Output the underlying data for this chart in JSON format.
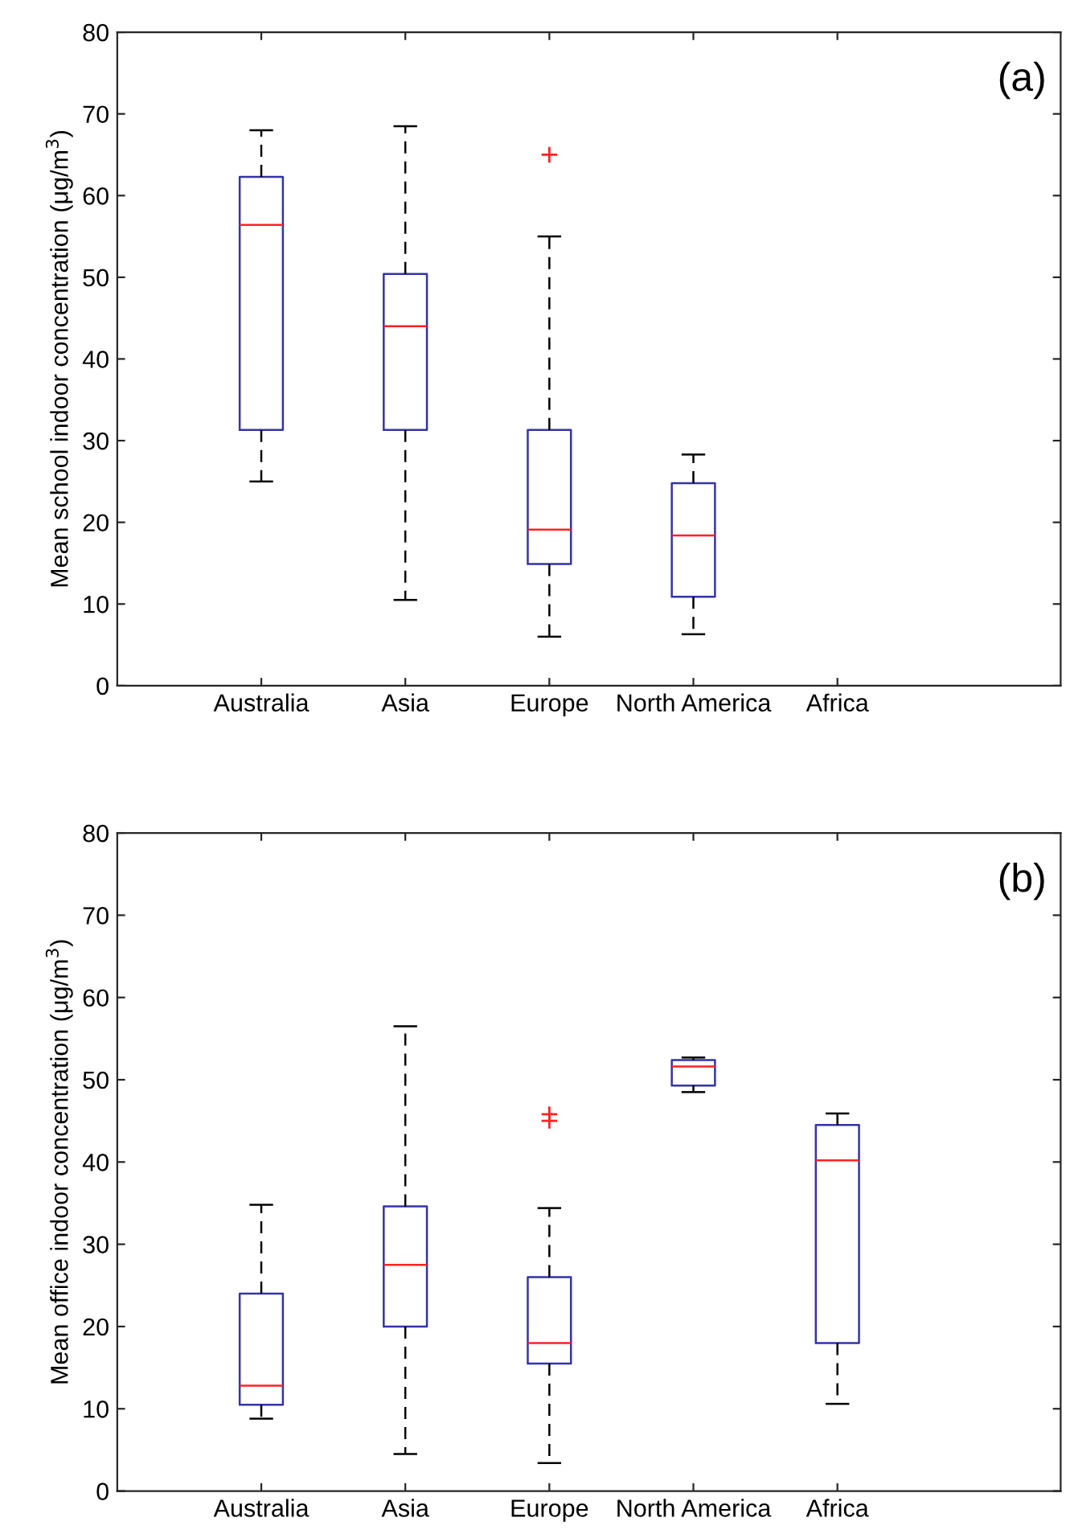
{
  "chart_data": [
    {
      "type": "box",
      "categories": [
        "Australia",
        "Asia",
        "Europe",
        "North America",
        "Africa"
      ],
      "ylabel": "Mean school indoor concentration (μg/m$^{3}$)",
      "annotations": [
        "(a)"
      ],
      "ylim": [
        0,
        80
      ],
      "yticks": [
        0,
        10,
        20,
        30,
        40,
        50,
        60,
        70,
        80
      ],
      "series": [
        {
          "color": "#3333aa",
          "boxes": [
            {
              "low": 25,
              "q1": 31.3,
              "median": 56.4,
              "q3": 62.3,
              "high": 68
            },
            {
              "low": 10.5,
              "q1": 31.3,
              "median": 44,
              "q3": 50.4,
              "high": 68.5
            },
            {
              "low": 6,
              "q1": 14.9,
              "median": 19.1,
              "q3": 31.3,
              "high": 55,
              "outliers": [
                65
              ]
            },
            {
              "low": 6.3,
              "q1": 10.9,
              "median": 18.4,
              "q3": 24.8,
              "high": 28.3
            },
            null
          ]
        }
      ]
    },
    {
      "type": "box",
      "categories": [
        "Australia",
        "Asia",
        "Europe",
        "North America",
        "Africa"
      ],
      "ylabel": "Mean office indoor concentration (μg/m$^{3}$)",
      "annotations": [
        "(b)"
      ],
      "ylim": [
        0,
        80
      ],
      "yticks": [
        0,
        10,
        20,
        30,
        40,
        50,
        60,
        70,
        80
      ],
      "series": [
        {
          "color": "#3333aa",
          "boxes": [
            {
              "low": 8.8,
              "q1": 10.5,
              "median": 12.8,
              "q3": 24,
              "high": 34.8
            },
            {
              "low": 4.5,
              "q1": 20,
              "median": 27.5,
              "q3": 34.6,
              "high": 56.5
            },
            {
              "low": 3.4,
              "q1": 15.5,
              "median": 18,
              "q3": 26,
              "high": 34.4,
              "outliers": [
                45,
                45.8
              ]
            },
            {
              "low": 48.5,
              "q1": 49.3,
              "median": 51.6,
              "q3": 52.4,
              "high": 52.7
            },
            {
              "low": 10.6,
              "q1": 18,
              "median": 40.2,
              "q3": 44.5,
              "high": 45.9
            }
          ]
        }
      ]
    }
  ]
}
